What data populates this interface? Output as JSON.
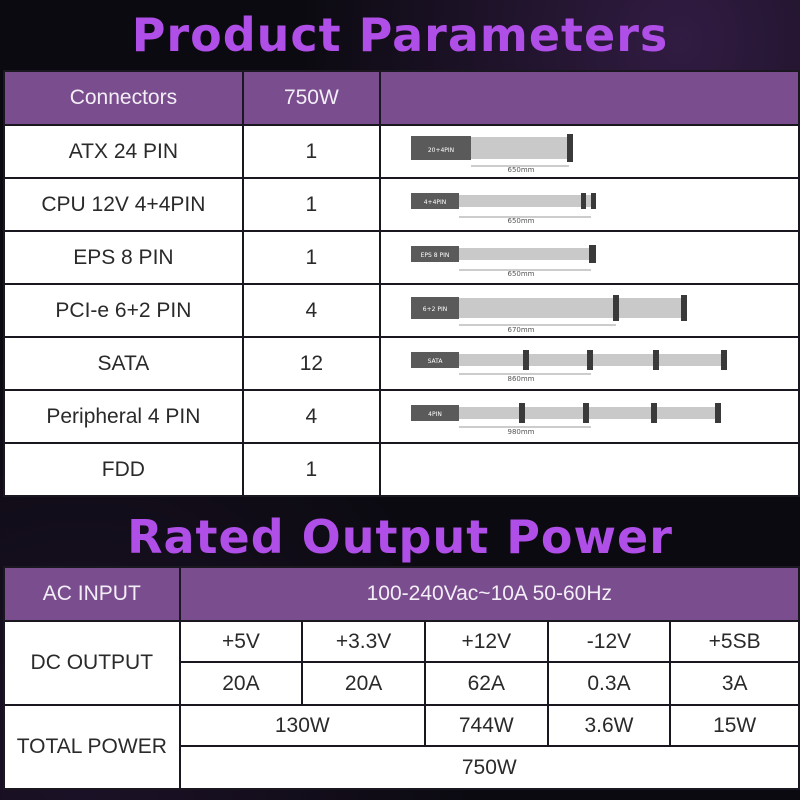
{
  "product_title": "Product Parameters",
  "rated_title": "Rated Output Power",
  "connectors": {
    "header": {
      "col1": "Connectors",
      "col2": "750W"
    },
    "rows": [
      {
        "name": "ATX 24 PIN",
        "count": "1",
        "cable_tag": "20+4PIN",
        "length": "650mm"
      },
      {
        "name": "CPU 12V 4+4PIN",
        "count": "1",
        "cable_tag": "4+4PIN",
        "length": "650mm"
      },
      {
        "name": "EPS 8 PIN",
        "count": "1",
        "cable_tag": "EPS 8 PIN",
        "length": "650mm"
      },
      {
        "name": "PCI-e 6+2 PIN",
        "count": "4",
        "cable_tag": "6+2 PIN",
        "length": "670mm"
      },
      {
        "name": "SATA",
        "count": "12",
        "cable_tag": "SATA",
        "length": "860mm"
      },
      {
        "name": "Peripheral 4 PIN",
        "count": "4",
        "cable_tag": "4PIN",
        "length": "980mm"
      },
      {
        "name": "FDD",
        "count": "1"
      }
    ]
  },
  "power": {
    "ac_input_label": "AC INPUT",
    "ac_input_value": "100-240Vac~10A 50-60Hz",
    "dc_output_label": "DC OUTPUT",
    "rails": [
      "+5V",
      "+3.3V",
      "+12V",
      "-12V",
      "+5SB"
    ],
    "currents": [
      "20A",
      "20A",
      "62A",
      "0.3A",
      "3A"
    ],
    "total_power_label": "TOTAL POWER",
    "combined_5v_33v": "130W",
    "rail_12v_power": "744W",
    "rail_n12v_power": "3.6W",
    "rail_5sb_power": "15W",
    "total": "750W"
  }
}
